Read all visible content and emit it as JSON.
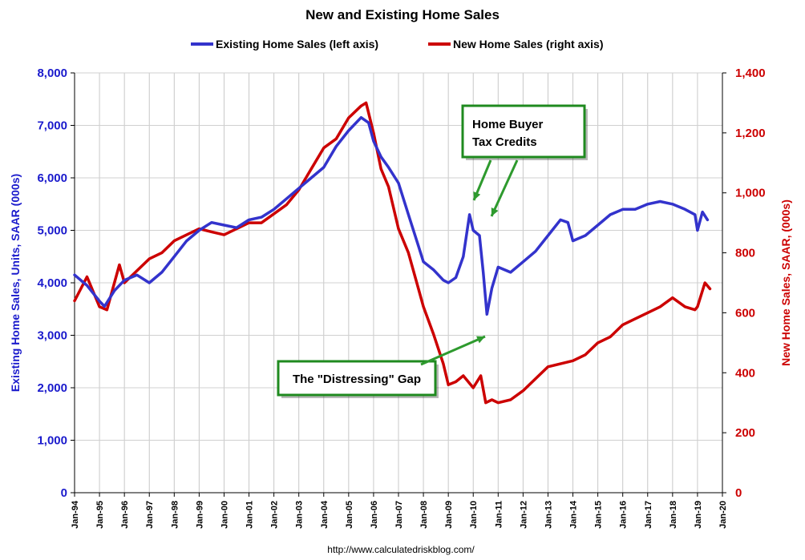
{
  "chart_data": {
    "type": "line",
    "title": "New and Existing Home Sales",
    "source": "http://www.calculatedriskblog.com/",
    "ylabel_left": "Existing Home Sales, Units, SAAR (000s)",
    "ylabel_right": "New Home Sales, SAAR, (000s)",
    "ylim_left": [
      0,
      8000
    ],
    "ylim_right": [
      0,
      1400
    ],
    "xlim": [
      1994.0,
      2020.0
    ],
    "grid": true,
    "legend_position": "top",
    "x_ticks": [
      "Jan-94",
      "Jan-95",
      "Jan-96",
      "Jan-97",
      "Jan-98",
      "Jan-99",
      "Jan-00",
      "Jan-01",
      "Jan-02",
      "Jan-03",
      "Jan-04",
      "Jan-05",
      "Jan-06",
      "Jan-07",
      "Jan-08",
      "Jan-09",
      "Jan-10",
      "Jan-11",
      "Jan-12",
      "Jan-13",
      "Jan-14",
      "Jan-15",
      "Jan-16",
      "Jan-17",
      "Jan-18",
      "Jan-19",
      "Jan-20"
    ],
    "y_ticks_left": [
      "0",
      "1,000",
      "2,000",
      "3,000",
      "4,000",
      "5,000",
      "6,000",
      "7,000",
      "8,000"
    ],
    "y_ticks_right": [
      "0",
      "200",
      "400",
      "600",
      "800",
      "1,000",
      "1,200",
      "1,400"
    ],
    "series": [
      {
        "name": "Existing Home Sales (left axis)",
        "axis": "left",
        "color": "#3333cc",
        "x": [
          1994.0,
          1994.5,
          1995.0,
          1995.2,
          1995.6,
          1996.0,
          1996.5,
          1997.0,
          1997.5,
          1998.0,
          1998.5,
          1999.0,
          1999.5,
          2000.0,
          2000.5,
          2001.0,
          2001.5,
          2002.0,
          2002.5,
          2003.0,
          2003.5,
          2004.0,
          2004.5,
          2005.0,
          2005.5,
          2005.8,
          2006.0,
          2006.3,
          2006.6,
          2007.0,
          2007.4,
          2007.8,
          2008.0,
          2008.4,
          2008.8,
          2009.0,
          2009.3,
          2009.6,
          2009.85,
          2010.0,
          2010.25,
          2010.4,
          2010.55,
          2010.75,
          2011.0,
          2011.5,
          2012.0,
          2012.5,
          2013.0,
          2013.5,
          2013.8,
          2014.0,
          2014.5,
          2015.0,
          2015.5,
          2016.0,
          2016.5,
          2017.0,
          2017.5,
          2018.0,
          2018.5,
          2018.9,
          2019.0,
          2019.2,
          2019.4
        ],
        "y": [
          4150,
          3950,
          3650,
          3550,
          3850,
          4050,
          4150,
          4000,
          4200,
          4500,
          4800,
          5000,
          5150,
          5100,
          5050,
          5200,
          5250,
          5400,
          5600,
          5800,
          6000,
          6200,
          6600,
          6900,
          7150,
          7050,
          6700,
          6400,
          6200,
          5900,
          5300,
          4700,
          4400,
          4250,
          4050,
          4000,
          4100,
          4500,
          5300,
          5000,
          4900,
          4200,
          3400,
          3900,
          4300,
          4200,
          4400,
          4600,
          4900,
          5200,
          5150,
          4800,
          4900,
          5100,
          5300,
          5400,
          5400,
          5500,
          5550,
          5500,
          5400,
          5300,
          5000,
          5350,
          5200
        ]
      },
      {
        "name": "New Home Sales (right axis)",
        "axis": "right",
        "color": "#cc0000",
        "x": [
          1994.0,
          1994.5,
          1995.0,
          1995.3,
          1995.8,
          1996.0,
          1996.5,
          1997.0,
          1997.5,
          1998.0,
          1998.5,
          1999.0,
          1999.5,
          2000.0,
          2000.5,
          2001.0,
          2001.5,
          2002.0,
          2002.5,
          2003.0,
          2003.5,
          2004.0,
          2004.5,
          2005.0,
          2005.5,
          2005.7,
          2006.0,
          2006.3,
          2006.6,
          2007.0,
          2007.4,
          2007.8,
          2008.0,
          2008.4,
          2008.8,
          2009.0,
          2009.3,
          2009.6,
          2010.0,
          2010.3,
          2010.5,
          2010.75,
          2011.0,
          2011.5,
          2012.0,
          2012.5,
          2013.0,
          2013.5,
          2014.0,
          2014.5,
          2015.0,
          2015.5,
          2016.0,
          2016.5,
          2017.0,
          2017.5,
          2018.0,
          2018.5,
          2018.9,
          2019.0,
          2019.3,
          2019.5
        ],
        "y": [
          640,
          720,
          620,
          610,
          760,
          700,
          740,
          780,
          800,
          840,
          860,
          880,
          870,
          860,
          880,
          900,
          900,
          930,
          960,
          1010,
          1080,
          1150,
          1180,
          1250,
          1290,
          1300,
          1200,
          1080,
          1020,
          880,
          800,
          680,
          620,
          530,
          430,
          360,
          370,
          390,
          350,
          390,
          300,
          310,
          300,
          310,
          340,
          380,
          420,
          430,
          440,
          460,
          500,
          520,
          560,
          580,
          600,
          620,
          650,
          620,
          610,
          620,
          700,
          680
        ]
      }
    ],
    "annotations": [
      {
        "lines": [
          "Home Buyer",
          "Tax Credits"
        ],
        "x": 2010.3,
        "y_left": 7100
      },
      {
        "lines": [
          "The \"Distressing\" Gap"
        ],
        "x": 2008.4,
        "y_left": 2150
      }
    ]
  }
}
